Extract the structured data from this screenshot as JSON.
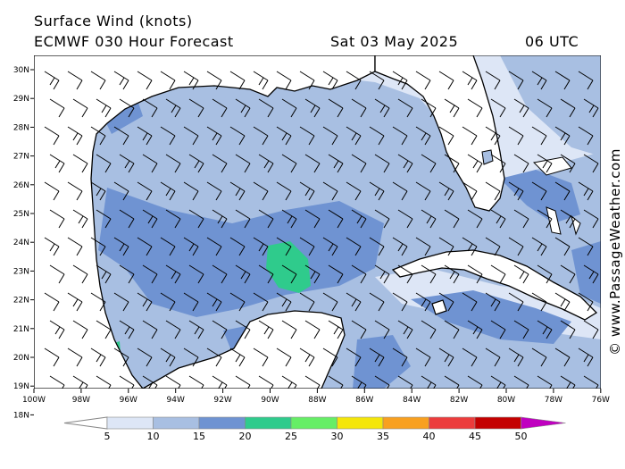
{
  "header": {
    "title": "Surface Wind (knots)",
    "model": "ECMWF 030 Hour Forecast",
    "date": "Sat 03 May 2025",
    "utc": "06 UTC"
  },
  "watermark": "© www.PassageWeather.com",
  "axes": {
    "lat_labels": [
      "30N",
      "29N",
      "28N",
      "27N",
      "26N",
      "25N",
      "24N",
      "23N",
      "22N",
      "21N",
      "20N",
      "19N",
      "18N"
    ],
    "lon_labels": [
      "100W",
      "98W",
      "96W",
      "94W",
      "92W",
      "90W",
      "88W",
      "86W",
      "84W",
      "82W",
      "80W",
      "78W",
      "76W"
    ]
  },
  "legend": {
    "labels": [
      "5",
      "10",
      "15",
      "20",
      "25",
      "30",
      "35",
      "40",
      "45",
      "50"
    ],
    "colors": [
      "#dde6f6",
      "#a8bfe2",
      "#6f93d2",
      "#2fcb8c",
      "#66ee66",
      "#f4e60a",
      "#f8a020",
      "#ec3c3c",
      "#c40000",
      "#c000c0"
    ]
  },
  "map_colors": {
    "ocean_5_10": "#dde6f6",
    "ocean_10_15": "#a8bfe2",
    "ocean_15_20": "#6f93d2",
    "ocean_20_25": "#2fcb8c",
    "land": "#ffffff"
  }
}
